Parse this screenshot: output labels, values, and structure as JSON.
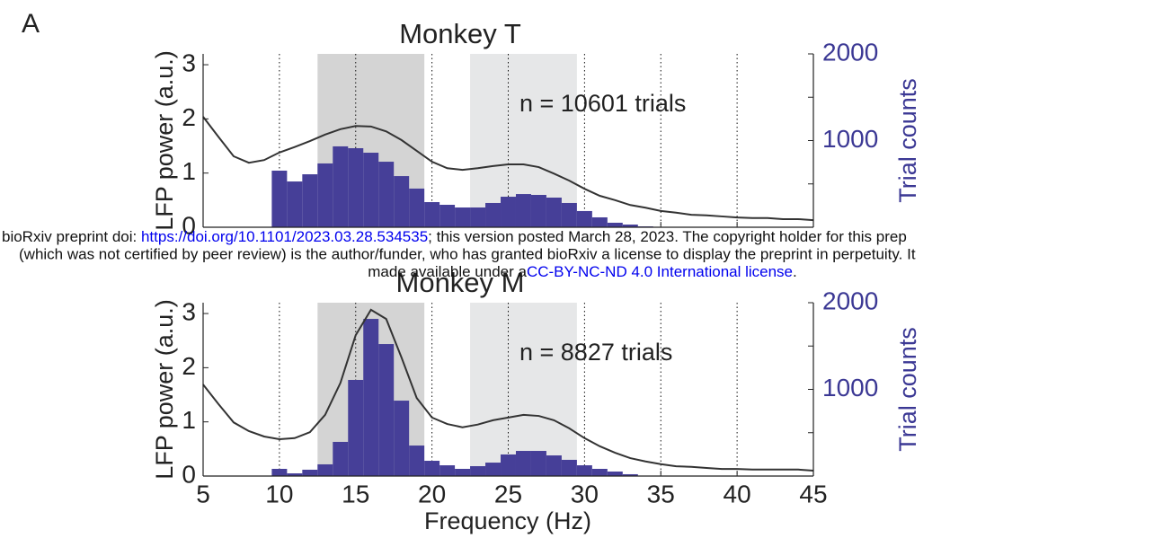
{
  "panel_label": "A",
  "watermark": {
    "line1": [
      "bioRxiv preprint doi: ",
      "https://doi.org/10.1101/2023.03.28.534535",
      "; this version posted March 28, 2023. The copyright holder for this prep"
    ],
    "line2": "(which was not certified by peer review) is the author/funder, who has granted bioRxiv a license to display the preprint in perpetuity. It",
    "line3": [
      "made available under a",
      "CC-BY-NC-ND 4.0 International license",
      "."
    ]
  },
  "chart_data": [
    {
      "type": "histogram",
      "title": "Monkey T",
      "annotation": "n = 10601 trials",
      "ylabel": "LFP power (a.u.)",
      "y2label": "Trial counts",
      "xlim": [
        5,
        45
      ],
      "xticks": [
        5,
        10,
        15,
        20,
        25,
        30,
        35,
        40,
        45
      ],
      "xtick_labels": false,
      "grid_x": "dotted",
      "ylim": [
        0,
        3.2
      ],
      "yticks": [
        0,
        1,
        2,
        3
      ],
      "y2lim": [
        0,
        2000
      ],
      "y2ticks": [
        1000,
        2000
      ],
      "y2minor": [
        500,
        1500
      ],
      "bands": [
        {
          "range": [
            12.5,
            19.5
          ],
          "color": "#d4d4d4"
        },
        {
          "range": [
            22.5,
            29.5
          ],
          "color": "#e6e7e8"
        }
      ],
      "histogram": {
        "axis": "y2",
        "color": "#463f98",
        "bins": [
          9.5,
          10.5,
          11.5,
          12.5,
          13.5,
          14.5,
          15.5,
          16.5,
          17.5,
          18.5,
          19.5,
          20.5,
          21.5,
          22.5,
          23.5,
          24.5,
          25.5,
          26.5,
          27.5,
          28.5,
          29.5,
          30.5,
          31.5,
          32.5,
          33.5,
          34.5
        ],
        "counts": [
          653,
          528,
          611,
          736,
          933,
          912,
          860,
          756,
          590,
          446,
          290,
          259,
          228,
          228,
          280,
          352,
          383,
          373,
          342,
          280,
          187,
          114,
          52,
          31,
          10
        ]
      },
      "line": {
        "color": "#333333",
        "x": [
          5,
          6,
          7,
          8,
          9,
          10,
          11,
          12,
          13,
          14,
          15,
          16,
          17,
          18,
          19,
          20,
          21,
          22,
          23,
          24,
          25,
          26,
          27,
          28,
          29,
          30,
          31,
          32,
          33,
          34,
          35,
          36,
          37,
          38,
          39,
          40,
          41,
          42,
          43,
          44,
          45
        ],
        "values": [
          2.04,
          1.67,
          1.31,
          1.19,
          1.24,
          1.38,
          1.48,
          1.59,
          1.71,
          1.81,
          1.87,
          1.86,
          1.77,
          1.61,
          1.41,
          1.21,
          1.09,
          1.06,
          1.09,
          1.13,
          1.16,
          1.16,
          1.11,
          0.99,
          0.86,
          0.71,
          0.58,
          0.5,
          0.41,
          0.36,
          0.3,
          0.27,
          0.23,
          0.22,
          0.2,
          0.18,
          0.17,
          0.17,
          0.15,
          0.15,
          0.13
        ]
      }
    },
    {
      "type": "histogram",
      "title": "Monkey M",
      "annotation": "n = 8827 trials",
      "ylabel": "LFP power (a.u.)",
      "y2label": "Trial counts",
      "xlabel": "Frequency (Hz)",
      "xlim": [
        5,
        45
      ],
      "xticks": [
        5,
        10,
        15,
        20,
        25,
        30,
        35,
        40,
        45
      ],
      "xtick_labels": true,
      "grid_x": "dotted",
      "ylim": [
        0,
        3.2
      ],
      "yticks": [
        0,
        1,
        2,
        3
      ],
      "y2lim": [
        0,
        2000
      ],
      "y2ticks": [
        1000,
        2000
      ],
      "y2minor": [
        500,
        1500
      ],
      "bands": [
        {
          "range": [
            12.5,
            19.5
          ],
          "color": "#d4d4d4"
        },
        {
          "range": [
            22.5,
            29.5
          ],
          "color": "#e6e7e8"
        }
      ],
      "histogram": {
        "axis": "y2",
        "color": "#463f98",
        "bins": [
          9.5,
          10.5,
          11.5,
          12.5,
          13.5,
          14.5,
          15.5,
          16.5,
          17.5,
          18.5,
          19.5,
          20.5,
          21.5,
          22.5,
          23.5,
          24.5,
          25.5,
          26.5,
          27.5,
          28.5,
          29.5,
          30.5,
          31.5,
          32.5,
          33.5
        ],
        "counts": [
          83,
          31,
          73,
          135,
          394,
          1109,
          1813,
          1523,
          870,
          352,
          176,
          124,
          83,
          114,
          155,
          249,
          290,
          290,
          238,
          187,
          124,
          83,
          52,
          21
        ]
      },
      "line": {
        "color": "#333333",
        "x": [
          5,
          6,
          7,
          8,
          9,
          10,
          11,
          12,
          13,
          14,
          15,
          16,
          17,
          18,
          19,
          20,
          21,
          22,
          23,
          24,
          25,
          26,
          27,
          28,
          29,
          30,
          31,
          32,
          33,
          34,
          35,
          36,
          37,
          38,
          39,
          40,
          41,
          42,
          43,
          44,
          45
        ],
        "values": [
          1.69,
          1.33,
          0.99,
          0.83,
          0.73,
          0.68,
          0.7,
          0.81,
          1.13,
          1.72,
          2.6,
          3.07,
          2.9,
          2.19,
          1.44,
          1.08,
          0.96,
          0.9,
          0.95,
          1.03,
          1.08,
          1.13,
          1.11,
          1.03,
          0.88,
          0.7,
          0.55,
          0.43,
          0.33,
          0.27,
          0.22,
          0.18,
          0.17,
          0.15,
          0.13,
          0.13,
          0.12,
          0.12,
          0.12,
          0.12,
          0.1
        ]
      }
    }
  ]
}
